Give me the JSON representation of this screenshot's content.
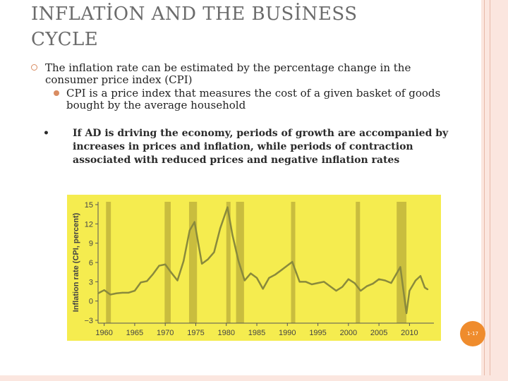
{
  "slide": {
    "title_line1": "INFLATİON  AND THE BUSİNESS",
    "title_line2": "CYCLE",
    "bullet1": "The inflation rate can be estimated by the percentage change in the consumer price index (CPI)",
    "bullet2": "CPI is a price index that measures the cost of a given basket of goods bought by the average household",
    "bullet3_marker": "•",
    "bullet3": "If AD is driving the economy, periods of growth are accompanied by increases in prices and inflation, while periods of contraction associated with reduced prices and negative inflation rates",
    "page_number": "1-17"
  },
  "colors": {
    "chart_bg": "#f5ec4f",
    "line": "#8a8a3c",
    "recession": "#c9bd3e",
    "accent": "#ef8c2d"
  },
  "chart_data": {
    "type": "line",
    "title": "",
    "xlabel": "",
    "ylabel": "Inflation rate (CPI, percent)",
    "xlim": [
      1959,
      2014
    ],
    "ylim": [
      -3,
      15
    ],
    "yticks": [
      "15",
      "12",
      "9",
      "6",
      "3",
      "0",
      "−3"
    ],
    "ytick_values": [
      15,
      12,
      9,
      6,
      3,
      0,
      -3
    ],
    "xticks": [
      "1960",
      "1965",
      "1970",
      "1975",
      "1980",
      "1985",
      "1990",
      "1995",
      "2000",
      "2005",
      "2010"
    ],
    "xtick_values": [
      1960,
      1965,
      1970,
      1975,
      1980,
      1985,
      1990,
      1995,
      2000,
      2005,
      2010
    ],
    "recessions": [
      [
        1960.3,
        1961.1
      ],
      [
        1969.9,
        1970.9
      ],
      [
        1973.9,
        1975.2
      ],
      [
        1980.0,
        1980.6
      ],
      [
        1981.6,
        1982.9
      ],
      [
        1990.6,
        1991.2
      ],
      [
        2001.2,
        2001.9
      ],
      [
        2007.9,
        2009.5
      ]
    ],
    "series": [
      {
        "name": "CPI inflation",
        "x": [
          1959,
          1960,
          1961,
          1962,
          1963,
          1964,
          1965,
          1966,
          1967,
          1968,
          1969,
          1970,
          1971,
          1972,
          1973,
          1974,
          1974.8,
          1976,
          1977,
          1978,
          1979,
          1980.2,
          1981,
          1982,
          1983,
          1984,
          1985,
          1986,
          1987,
          1988,
          1989,
          1990.8,
          1992,
          1993,
          1994,
          1995,
          1996,
          1997,
          1998,
          1999,
          2000,
          2001,
          2002,
          2003,
          2004,
          2005,
          2006,
          2007,
          2008.5,
          2009.5,
          2010,
          2011,
          2011.8,
          2012.5,
          2013
        ],
        "values": [
          1.2,
          1.7,
          1.0,
          1.2,
          1.3,
          1.3,
          1.6,
          2.9,
          3.1,
          4.2,
          5.5,
          5.7,
          4.4,
          3.2,
          6.2,
          11.0,
          12.3,
          5.8,
          6.5,
          7.6,
          11.3,
          14.6,
          10.3,
          6.2,
          3.2,
          4.3,
          3.6,
          1.9,
          3.6,
          4.1,
          4.8,
          6.1,
          3.0,
          3.0,
          2.6,
          2.8,
          3.0,
          2.3,
          1.6,
          2.2,
          3.4,
          2.8,
          1.6,
          2.3,
          2.7,
          3.4,
          3.2,
          2.8,
          5.3,
          -1.9,
          1.6,
          3.2,
          3.9,
          2.1,
          1.8
        ]
      }
    ]
  }
}
